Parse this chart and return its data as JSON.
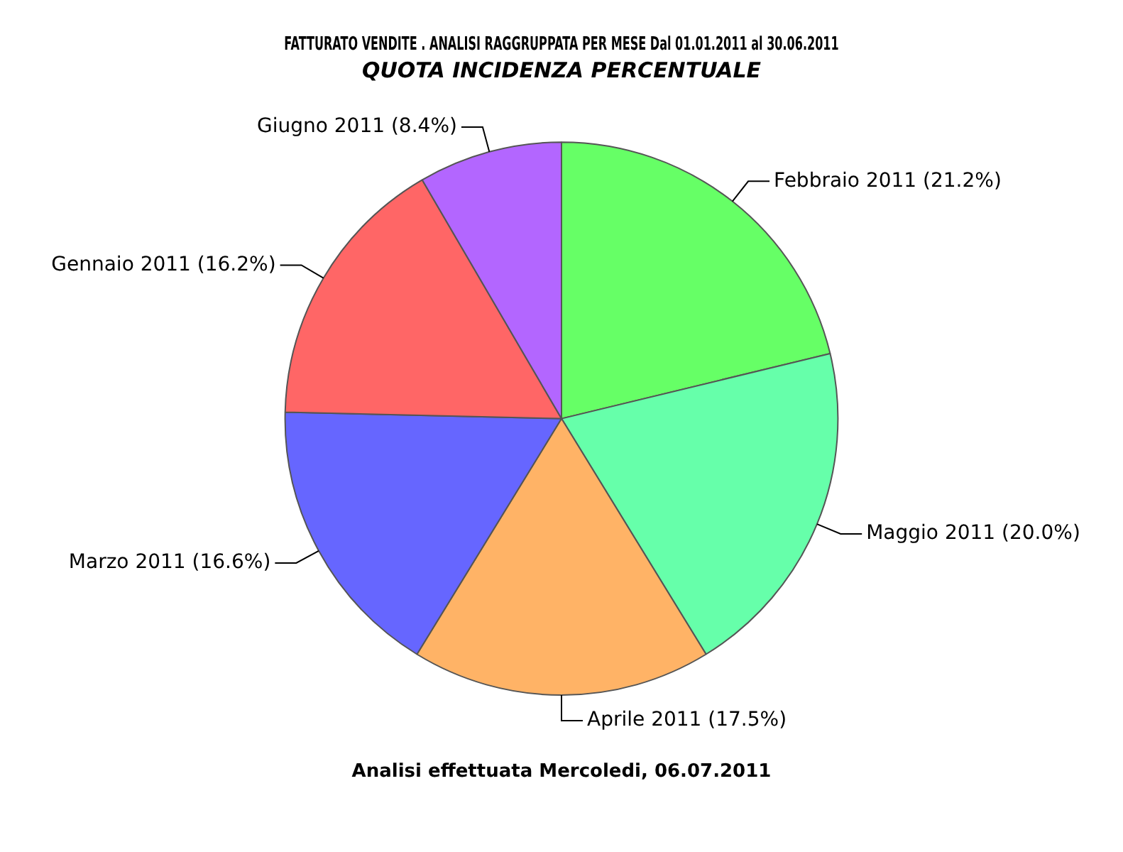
{
  "chart_data": {
    "type": "pie",
    "title": "FATTURATO VENDITE . ANALISI RAGGRUPPATA PER MESE Dal 01.01.2011 al 30.06.2011",
    "subtitle": "QUOTA INCIDENZA PERCENTUALE",
    "categories": [
      "Febbraio 2011",
      "Maggio 2011",
      "Aprile 2011",
      "Marzo 2011",
      "Gennaio 2011",
      "Giugno 2011"
    ],
    "values": [
      21.2,
      20.0,
      17.5,
      16.6,
      16.2,
      8.4
    ],
    "value_labels": [
      "(21.2%)",
      "(20.0%)",
      "(17.5%)",
      "(16.6%)",
      "(16.2%)",
      "(8.4%)"
    ],
    "colors": [
      "#66ff66",
      "#66ffaa",
      "#ffb366",
      "#6666ff",
      "#ff6666",
      "#b366ff"
    ],
    "legend": false,
    "annotations": [
      "Analisi effettuata Mercoledi, 06.07.2011"
    ]
  }
}
